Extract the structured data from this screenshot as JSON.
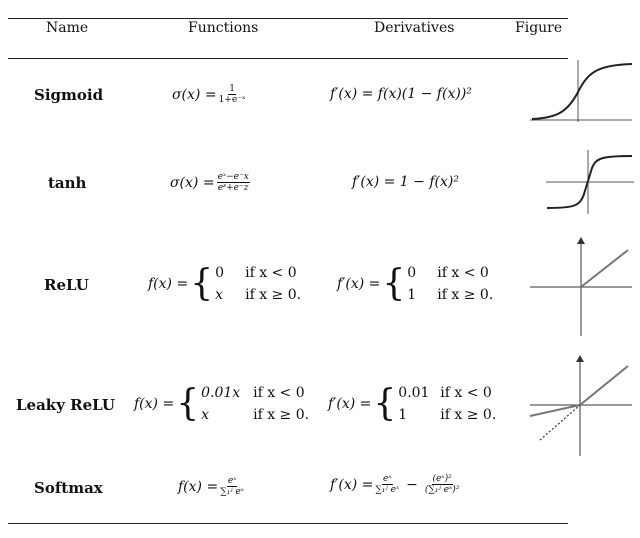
{
  "header": {
    "name": "Name",
    "functions": "Functions",
    "derivatives": "Derivatives",
    "figure": "Figure"
  },
  "rows": [
    {
      "name": "Sigmoid",
      "function": {
        "lhs": "σ(x) =",
        "num": "1",
        "den": "1+e⁻ˣ"
      },
      "derivative": {
        "text": "f′(x) = f(x)(1 − f(x))²"
      },
      "figure": "sigmoid-curve"
    },
    {
      "name": "tanh",
      "function": {
        "lhs": "σ(x) =",
        "num": "eˣ−e⁻x",
        "den": "eᶻ+e⁻z"
      },
      "derivative": {
        "text": "f′(x) = 1 − f(x)²"
      },
      "figure": "tanh-curve"
    },
    {
      "name": "ReLU",
      "function": {
        "lhs": "f(x) =",
        "cases": [
          {
            "value": "0",
            "cond": "if x < 0"
          },
          {
            "value": "x",
            "cond": "if x ≥ 0."
          }
        ]
      },
      "derivative": {
        "lhs": "f′(x) =",
        "cases": [
          {
            "value": "0",
            "cond": "if x < 0"
          },
          {
            "value": "1",
            "cond": "if x ≥ 0."
          }
        ]
      },
      "figure": "relu-plot"
    },
    {
      "name": "Leaky ReLU",
      "function": {
        "lhs": "f(x) =",
        "cases": [
          {
            "value": "0.01x",
            "cond": "if x < 0"
          },
          {
            "value": "x",
            "cond": "if x ≥ 0."
          }
        ]
      },
      "derivative": {
        "lhs": "f′(x) =",
        "cases": [
          {
            "value": "0.01",
            "cond": "if x < 0"
          },
          {
            "value": "1",
            "cond": "if x ≥ 0."
          }
        ]
      },
      "figure": "leaky-relu-plot"
    },
    {
      "name": "Softmax",
      "function": {
        "lhs": "f(x) =",
        "num": "eˣ",
        "den": "∑₁ʲ eˣ"
      },
      "derivative": {
        "lhs": "f′(x) =",
        "num": "eˣ",
        "den": "∑₁ʲ eˣ",
        "minus": "−",
        "num2": "(eˣ)²",
        "den2": "(∑₁ʲ eˣ)²"
      },
      "figure": null
    }
  ]
}
